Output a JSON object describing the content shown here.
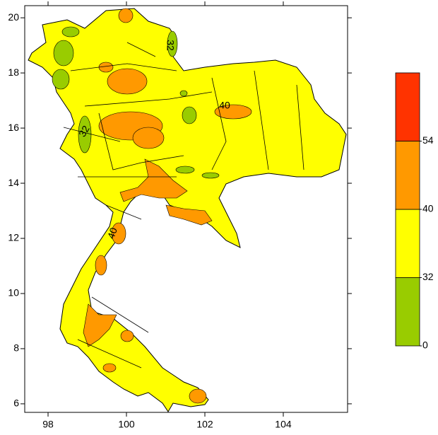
{
  "map": {
    "xlim": [
      97.405,
      105.64
    ],
    "ylim": [
      5.69,
      20.44
    ],
    "xticks": [
      98,
      100,
      102,
      104
    ],
    "yticks": [
      6,
      8,
      10,
      12,
      14,
      16,
      18,
      20
    ],
    "contour_labels": [
      "40",
      "32",
      "40",
      "32"
    ]
  },
  "colorbar": {
    "levels": [
      0,
      32,
      40,
      54
    ],
    "colors": [
      "#99cc00",
      "#ffff00",
      "#ff9900",
      "#ff3300"
    ]
  }
}
